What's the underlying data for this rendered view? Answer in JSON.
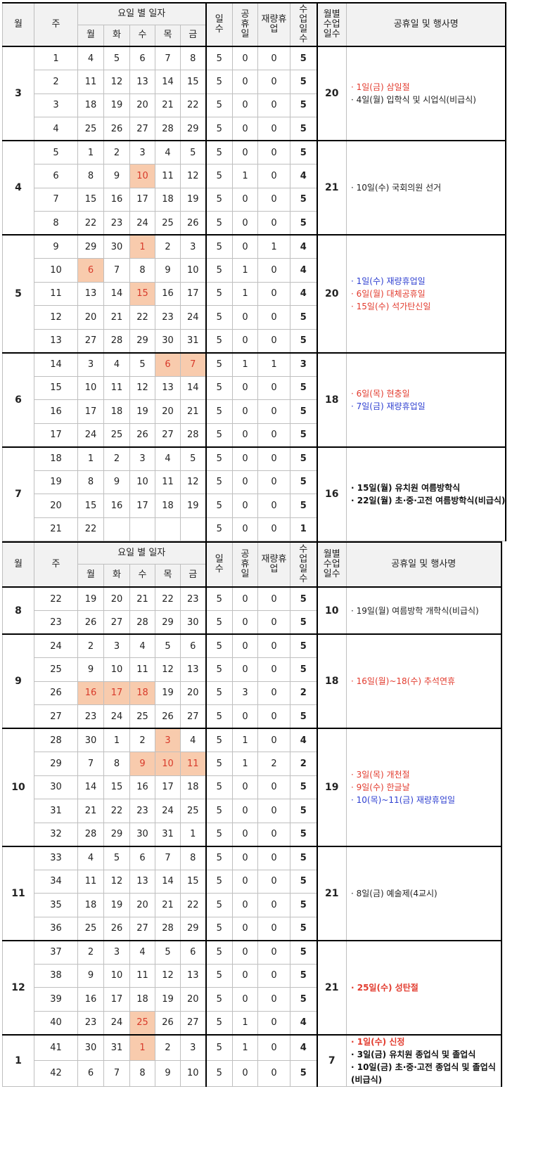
{
  "header": {
    "month": "월",
    "week": "주",
    "daily": "요일 별 일자",
    "days": [
      "월",
      "화",
      "수",
      "목",
      "금"
    ],
    "num_days": "일\n수",
    "holiday": "공\n휴\n일",
    "discretionary": "재량휴\n업",
    "class_days": "수\n업\n일\n수",
    "monthly": "월별\n수업\n일수",
    "events": "공휴일 및 행사명"
  },
  "colors": {
    "highlight_bg": "#f8cbad",
    "holiday_red": "#e23b2e",
    "discretionary_blue": "#2e3fd0"
  },
  "tables": [
    {
      "months": [
        {
          "month": "3",
          "total": "20",
          "weeks": [
            {
              "w": "1",
              "d": [
                "4",
                "5",
                "6",
                "7",
                "8"
              ],
              "n": "5",
              "h": "0",
              "r": "0",
              "c": "5",
              "hl": []
            },
            {
              "w": "2",
              "d": [
                "11",
                "12",
                "13",
                "14",
                "15"
              ],
              "n": "5",
              "h": "0",
              "r": "0",
              "c": "5",
              "hl": []
            },
            {
              "w": "3",
              "d": [
                "18",
                "19",
                "20",
                "21",
                "22"
              ],
              "n": "5",
              "h": "0",
              "r": "0",
              "c": "5",
              "hl": []
            },
            {
              "w": "4",
              "d": [
                "25",
                "26",
                "27",
                "28",
                "29"
              ],
              "n": "5",
              "h": "0",
              "r": "0",
              "c": "5",
              "hl": []
            }
          ],
          "events": [
            {
              "text": "· 1일(금) 삼일절",
              "color": "red"
            },
            {
              "text": "· 4일(월) 입학식 및 시업식(비급식)",
              "color": "dark"
            }
          ]
        },
        {
          "month": "4",
          "total": "21",
          "weeks": [
            {
              "w": "5",
              "d": [
                "1",
                "2",
                "3",
                "4",
                "5"
              ],
              "n": "5",
              "h": "0",
              "r": "0",
              "c": "5",
              "hl": []
            },
            {
              "w": "6",
              "d": [
                "8",
                "9",
                "10",
                "11",
                "12"
              ],
              "n": "5",
              "h": "1",
              "r": "0",
              "c": "4",
              "hl": [
                2
              ]
            },
            {
              "w": "7",
              "d": [
                "15",
                "16",
                "17",
                "18",
                "19"
              ],
              "n": "5",
              "h": "0",
              "r": "0",
              "c": "5",
              "hl": []
            },
            {
              "w": "8",
              "d": [
                "22",
                "23",
                "24",
                "25",
                "26"
              ],
              "n": "5",
              "h": "0",
              "r": "0",
              "c": "5",
              "hl": []
            }
          ],
          "events": [
            {
              "text": "· 10일(수) 국회의원 선거",
              "color": "dark"
            }
          ]
        },
        {
          "month": "5",
          "total": "20",
          "weeks": [
            {
              "w": "9",
              "d": [
                "29",
                "30",
                "1",
                "2",
                "3"
              ],
              "n": "5",
              "h": "0",
              "r": "1",
              "c": "4",
              "hl": [
                2
              ]
            },
            {
              "w": "10",
              "d": [
                "6",
                "7",
                "8",
                "9",
                "10"
              ],
              "n": "5",
              "h": "1",
              "r": "0",
              "c": "4",
              "hl": [
                0
              ]
            },
            {
              "w": "11",
              "d": [
                "13",
                "14",
                "15",
                "16",
                "17"
              ],
              "n": "5",
              "h": "1",
              "r": "0",
              "c": "4",
              "hl": [
                2
              ]
            },
            {
              "w": "12",
              "d": [
                "20",
                "21",
                "22",
                "23",
                "24"
              ],
              "n": "5",
              "h": "0",
              "r": "0",
              "c": "5",
              "hl": []
            },
            {
              "w": "13",
              "d": [
                "27",
                "28",
                "29",
                "30",
                "31"
              ],
              "n": "5",
              "h": "0",
              "r": "0",
              "c": "5",
              "hl": []
            }
          ],
          "events": [
            {
              "text": "· 1일(수) 재량휴업일",
              "color": "blue"
            },
            {
              "text": "· 6일(월) 대체공휴일",
              "color": "red"
            },
            {
              "text": "· 15일(수) 석가탄신일",
              "color": "red"
            }
          ]
        },
        {
          "month": "6",
          "total": "18",
          "weeks": [
            {
              "w": "14",
              "d": [
                "3",
                "4",
                "5",
                "6",
                "7"
              ],
              "n": "5",
              "h": "1",
              "r": "1",
              "c": "3",
              "hl": [
                3,
                4
              ]
            },
            {
              "w": "15",
              "d": [
                "10",
                "11",
                "12",
                "13",
                "14"
              ],
              "n": "5",
              "h": "0",
              "r": "0",
              "c": "5",
              "hl": []
            },
            {
              "w": "16",
              "d": [
                "17",
                "18",
                "19",
                "20",
                "21"
              ],
              "n": "5",
              "h": "0",
              "r": "0",
              "c": "5",
              "hl": []
            },
            {
              "w": "17",
              "d": [
                "24",
                "25",
                "26",
                "27",
                "28"
              ],
              "n": "5",
              "h": "0",
              "r": "0",
              "c": "5",
              "hl": []
            }
          ],
          "events": [
            {
              "text": "· 6일(목) 현충일",
              "color": "red"
            },
            {
              "text": "· 7일(금) 재량휴업일",
              "color": "blue"
            }
          ]
        },
        {
          "month": "7",
          "total": "16",
          "weeks": [
            {
              "w": "18",
              "d": [
                "1",
                "2",
                "3",
                "4",
                "5"
              ],
              "n": "5",
              "h": "0",
              "r": "0",
              "c": "5",
              "hl": []
            },
            {
              "w": "19",
              "d": [
                "8",
                "9",
                "10",
                "11",
                "12"
              ],
              "n": "5",
              "h": "0",
              "r": "0",
              "c": "5",
              "hl": []
            },
            {
              "w": "20",
              "d": [
                "15",
                "16",
                "17",
                "18",
                "19"
              ],
              "n": "5",
              "h": "0",
              "r": "0",
              "c": "5",
              "hl": []
            },
            {
              "w": "21",
              "d": [
                "22",
                "",
                "",
                "",
                ""
              ],
              "n": "5",
              "h": "0",
              "r": "0",
              "c": "1",
              "hl": []
            }
          ],
          "events": [
            {
              "text": "· 15일(월) 유치원 여름방학식",
              "color": "darkb"
            },
            {
              "text": "· 22일(월) 초·중·고전 여름방학식(비급식)",
              "color": "darkb"
            }
          ]
        }
      ]
    },
    {
      "months": [
        {
          "month": "8",
          "total": "10",
          "weeks": [
            {
              "w": "22",
              "d": [
                "19",
                "20",
                "21",
                "22",
                "23"
              ],
              "n": "5",
              "h": "0",
              "r": "0",
              "c": "5",
              "hl": []
            },
            {
              "w": "23",
              "d": [
                "26",
                "27",
                "28",
                "29",
                "30"
              ],
              "n": "5",
              "h": "0",
              "r": "0",
              "c": "5",
              "hl": []
            }
          ],
          "events": [
            {
              "text": "· 19일(월) 여름방학 개학식(비급식)",
              "color": "dark"
            }
          ]
        },
        {
          "month": "9",
          "total": "18",
          "weeks": [
            {
              "w": "24",
              "d": [
                "2",
                "3",
                "4",
                "5",
                "6"
              ],
              "n": "5",
              "h": "0",
              "r": "0",
              "c": "5",
              "hl": []
            },
            {
              "w": "25",
              "d": [
                "9",
                "10",
                "11",
                "12",
                "13"
              ],
              "n": "5",
              "h": "0",
              "r": "0",
              "c": "5",
              "hl": []
            },
            {
              "w": "26",
              "d": [
                "16",
                "17",
                "18",
                "19",
                "20"
              ],
              "n": "5",
              "h": "3",
              "r": "0",
              "c": "2",
              "hl": [
                0,
                1,
                2
              ]
            },
            {
              "w": "27",
              "d": [
                "23",
                "24",
                "25",
                "26",
                "27"
              ],
              "n": "5",
              "h": "0",
              "r": "0",
              "c": "5",
              "hl": []
            }
          ],
          "events": [
            {
              "text": "· 16일(월)~18(수) 추석연휴",
              "color": "red"
            }
          ]
        },
        {
          "month": "10",
          "total": "19",
          "weeks": [
            {
              "w": "28",
              "d": [
                "30",
                "1",
                "2",
                "3",
                "4"
              ],
              "n": "5",
              "h": "1",
              "r": "0",
              "c": "4",
              "hl": [
                3
              ]
            },
            {
              "w": "29",
              "d": [
                "7",
                "8",
                "9",
                "10",
                "11"
              ],
              "n": "5",
              "h": "1",
              "r": "2",
              "c": "2",
              "hl": [
                2,
                3,
                4
              ]
            },
            {
              "w": "30",
              "d": [
                "14",
                "15",
                "16",
                "17",
                "18"
              ],
              "n": "5",
              "h": "0",
              "r": "0",
              "c": "5",
              "hl": []
            },
            {
              "w": "31",
              "d": [
                "21",
                "22",
                "23",
                "24",
                "25"
              ],
              "n": "5",
              "h": "0",
              "r": "0",
              "c": "5",
              "hl": []
            },
            {
              "w": "32",
              "d": [
                "28",
                "29",
                "30",
                "31",
                "1"
              ],
              "n": "5",
              "h": "0",
              "r": "0",
              "c": "5",
              "hl": []
            }
          ],
          "events": [
            {
              "text": "· 3일(목) 개천절",
              "color": "red"
            },
            {
              "text": "· 9일(수) 한글날",
              "color": "red"
            },
            {
              "text": "· 10(목)~11(금) 재량휴업일",
              "color": "blue"
            }
          ]
        },
        {
          "month": "11",
          "total": "21",
          "weeks": [
            {
              "w": "33",
              "d": [
                "4",
                "5",
                "6",
                "7",
                "8"
              ],
              "n": "5",
              "h": "0",
              "r": "0",
              "c": "5",
              "hl": []
            },
            {
              "w": "34",
              "d": [
                "11",
                "12",
                "13",
                "14",
                "15"
              ],
              "n": "5",
              "h": "0",
              "r": "0",
              "c": "5",
              "hl": []
            },
            {
              "w": "35",
              "d": [
                "18",
                "19",
                "20",
                "21",
                "22"
              ],
              "n": "5",
              "h": "0",
              "r": "0",
              "c": "5",
              "hl": []
            },
            {
              "w": "36",
              "d": [
                "25",
                "26",
                "27",
                "28",
                "29"
              ],
              "n": "5",
              "h": "0",
              "r": "0",
              "c": "5",
              "hl": []
            }
          ],
          "events": [
            {
              "text": "· 8일(금) 예술제(4교시)",
              "color": "dark"
            }
          ]
        },
        {
          "month": "12",
          "total": "21",
          "weeks": [
            {
              "w": "37",
              "d": [
                "2",
                "3",
                "4",
                "5",
                "6"
              ],
              "n": "5",
              "h": "0",
              "r": "0",
              "c": "5",
              "hl": []
            },
            {
              "w": "38",
              "d": [
                "9",
                "10",
                "11",
                "12",
                "13"
              ],
              "n": "5",
              "h": "0",
              "r": "0",
              "c": "5",
              "hl": []
            },
            {
              "w": "39",
              "d": [
                "16",
                "17",
                "18",
                "19",
                "20"
              ],
              "n": "5",
              "h": "0",
              "r": "0",
              "c": "5",
              "hl": []
            },
            {
              "w": "40",
              "d": [
                "23",
                "24",
                "25",
                "26",
                "27"
              ],
              "n": "5",
              "h": "1",
              "r": "0",
              "c": "4",
              "hl": [
                2
              ]
            }
          ],
          "events": [
            {
              "text": "· 25일(수) 성탄절",
              "color": "redb"
            }
          ]
        },
        {
          "month": "1",
          "total": "7",
          "weeks": [
            {
              "w": "41",
              "d": [
                "30",
                "31",
                "1",
                "2",
                "3"
              ],
              "n": "5",
              "h": "1",
              "r": "0",
              "c": "4",
              "hl": [
                2
              ]
            },
            {
              "w": "42",
              "d": [
                "6",
                "7",
                "8",
                "9",
                "10"
              ],
              "n": "5",
              "h": "0",
              "r": "0",
              "c": "5",
              "hl": []
            }
          ],
          "events": [
            {
              "text": "· 1일(수) 신정",
              "color": "redb"
            },
            {
              "text": "· 3일(금) 유치원 종업식 및 졸업식",
              "color": "darkb"
            },
            {
              "text": "· 10일(금) 초·중·고전 종업식 및 졸업식(비급식)",
              "color": "darkb",
              "wrap": true
            }
          ]
        }
      ]
    }
  ]
}
